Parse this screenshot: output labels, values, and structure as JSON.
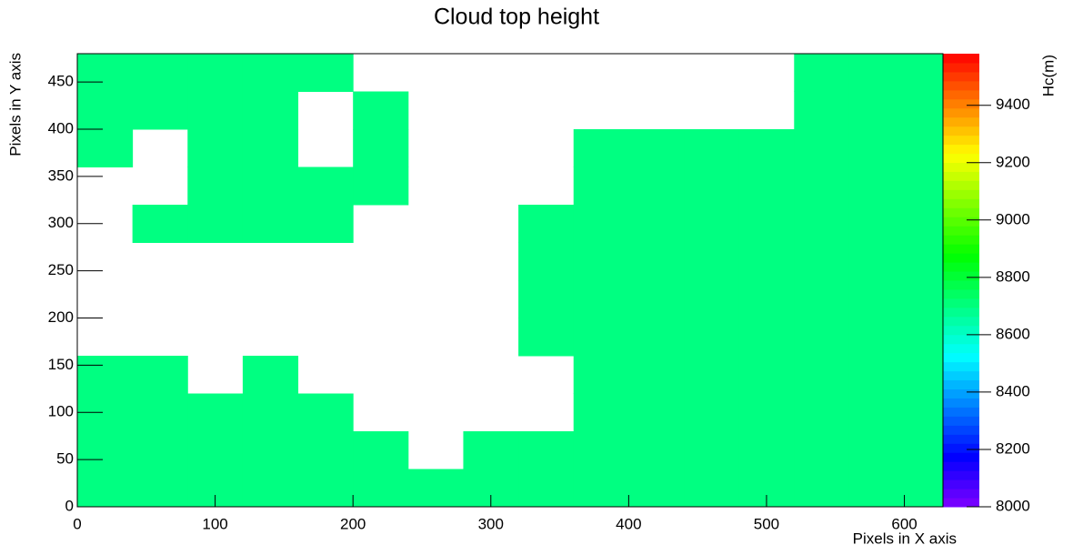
{
  "chart_data": {
    "type": "heatmap",
    "title": "Cloud top height",
    "x_label": "Pixels in X axis",
    "y_label": "Pixels in Y axis",
    "z_label": "Hc(m)",
    "x_edges": [
      0,
      40,
      80,
      120,
      160,
      200,
      240,
      280,
      320,
      360,
      400,
      440,
      480,
      520,
      560,
      600,
      628
    ],
    "y_edges": [
      0,
      40,
      80,
      120,
      160,
      200,
      240,
      280,
      320,
      360,
      400,
      440,
      480
    ],
    "z": [
      [
        8700,
        8700,
        8700,
        8700,
        8700,
        8700,
        8700,
        8700,
        8700,
        8700,
        8700,
        8700,
        8700,
        8700,
        8700,
        8700
      ],
      [
        8700,
        8700,
        8700,
        8700,
        8700,
        8700,
        null,
        8700,
        8700,
        8700,
        8700,
        8700,
        8700,
        8700,
        8700,
        8700
      ],
      [
        8700,
        8700,
        8700,
        8700,
        8700,
        null,
        null,
        null,
        null,
        8700,
        8700,
        8700,
        8700,
        8700,
        8700,
        8700
      ],
      [
        8700,
        8700,
        null,
        8700,
        null,
        null,
        null,
        null,
        null,
        8700,
        8700,
        8700,
        8700,
        8700,
        8700,
        8700
      ],
      [
        null,
        null,
        null,
        null,
        null,
        null,
        null,
        null,
        8700,
        8700,
        8700,
        8700,
        8700,
        8700,
        8700,
        8700
      ],
      [
        null,
        null,
        null,
        null,
        null,
        null,
        null,
        null,
        8700,
        8700,
        8700,
        8700,
        8700,
        8700,
        8700,
        8700
      ],
      [
        null,
        null,
        null,
        null,
        null,
        null,
        null,
        null,
        8700,
        8700,
        8700,
        8700,
        8700,
        8700,
        8700,
        8700
      ],
      [
        null,
        8700,
        8700,
        8700,
        8700,
        null,
        null,
        null,
        8700,
        8700,
        8700,
        8700,
        8700,
        8700,
        8700,
        8700
      ],
      [
        null,
        null,
        8700,
        8700,
        8700,
        8700,
        null,
        null,
        null,
        8700,
        8700,
        8700,
        8700,
        8700,
        8700,
        8700
      ],
      [
        8700,
        null,
        8700,
        8700,
        null,
        8700,
        null,
        null,
        null,
        8700,
        8700,
        8700,
        8700,
        8700,
        8700,
        8700
      ],
      [
        8700,
        8700,
        8700,
        8700,
        null,
        8700,
        null,
        null,
        null,
        null,
        null,
        null,
        null,
        8700,
        8700,
        8700
      ],
      [
        8700,
        8700,
        8700,
        8700,
        8700,
        null,
        null,
        null,
        null,
        null,
        null,
        null,
        null,
        8700,
        8700,
        8700
      ]
    ],
    "xlim": [
      0,
      628
    ],
    "ylim": [
      0,
      480
    ],
    "zlim": [
      8000,
      9580
    ],
    "xticks": [
      0,
      100,
      200,
      300,
      400,
      500,
      600
    ],
    "yticks": [
      0,
      50,
      100,
      150,
      200,
      250,
      300,
      350,
      400,
      450
    ],
    "zticks": [
      8000,
      8200,
      8400,
      8600,
      8800,
      9000,
      9200,
      9400
    ]
  }
}
